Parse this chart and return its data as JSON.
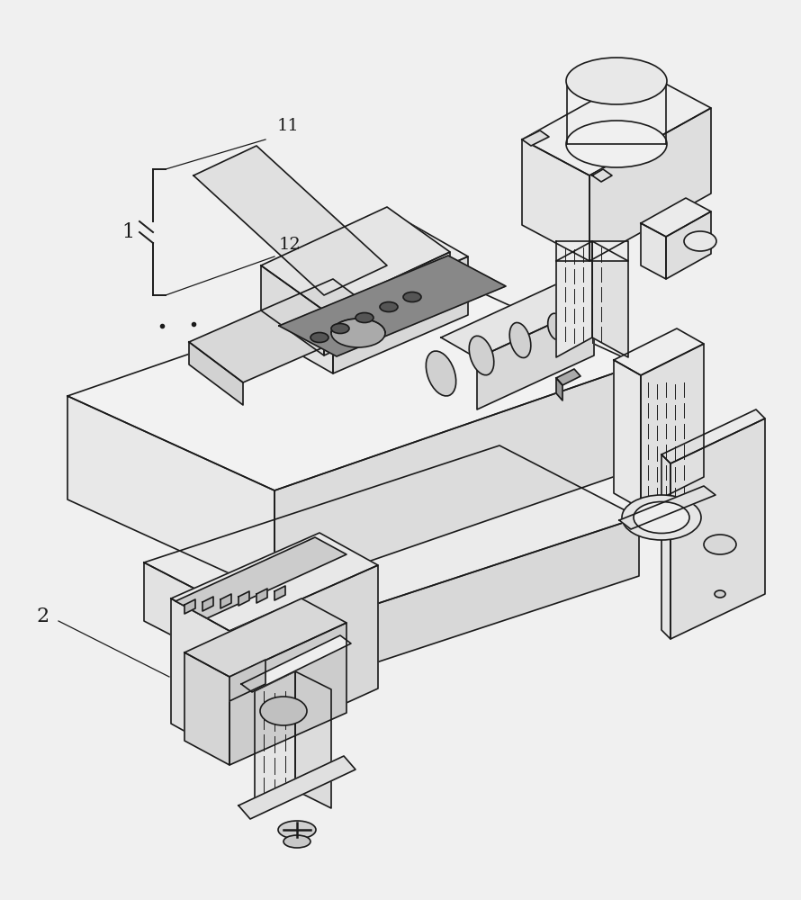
{
  "bg_color": "#f0f0f0",
  "line_color": "#1a1a1a",
  "fill_color": "#ffffff",
  "label_1": "1",
  "label_2": "2",
  "label_11": "11",
  "label_12": "12",
  "lw": 1.2
}
